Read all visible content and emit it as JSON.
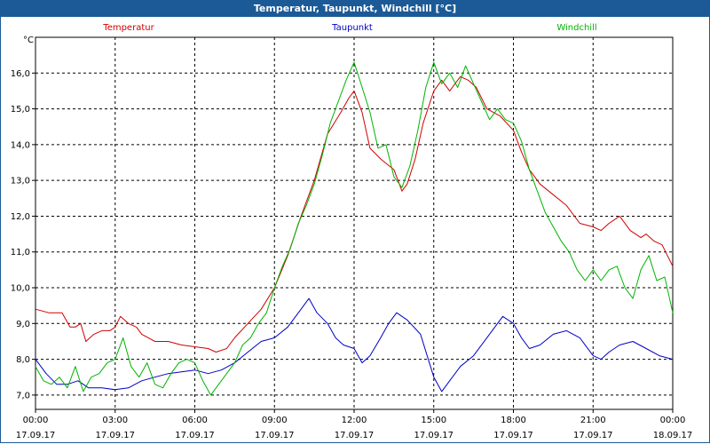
{
  "window": {
    "title": "Temperatur, Taupunkt, Windchill [°C]"
  },
  "chart_data": {
    "type": "line",
    "title": "Temperatur, Taupunkt, Windchill [°C]",
    "yunit": "°C",
    "ylim": [
      6.6,
      17.0
    ],
    "yticks": [
      "7,0",
      "8,0",
      "9,0",
      "10,0",
      "11,0",
      "12,0",
      "13,0",
      "14,0",
      "15,0",
      "16,0"
    ],
    "yticks_values": [
      7,
      8,
      9,
      10,
      11,
      12,
      13,
      14,
      15,
      16
    ],
    "xlim": [
      0,
      24
    ],
    "xticks": [
      {
        "h": 0,
        "time": "00:00",
        "date": "17.09.17"
      },
      {
        "h": 3,
        "time": "03:00",
        "date": "17.09.17"
      },
      {
        "h": 6,
        "time": "06:00",
        "date": "17.09.17"
      },
      {
        "h": 9,
        "time": "09:00",
        "date": "17.09.17"
      },
      {
        "h": 12,
        "time": "12:00",
        "date": "17.09.17"
      },
      {
        "h": 15,
        "time": "15:00",
        "date": "17.09.17"
      },
      {
        "h": 18,
        "time": "18:00",
        "date": "17.09.17"
      },
      {
        "h": 21,
        "time": "21:00",
        "date": "17.09.17"
      },
      {
        "h": 24,
        "time": "00:00",
        "date": "18.09.17"
      }
    ],
    "grid": true,
    "legend_position": "top",
    "series": [
      {
        "name": "Temperatur",
        "color": "#d00000",
        "points": [
          [
            0,
            9.4
          ],
          [
            0.5,
            9.3
          ],
          [
            1,
            9.3
          ],
          [
            1.3,
            8.9
          ],
          [
            1.5,
            8.9
          ],
          [
            1.7,
            9.0
          ],
          [
            1.9,
            8.5
          ],
          [
            2.2,
            8.7
          ],
          [
            2.5,
            8.8
          ],
          [
            2.8,
            8.8
          ],
          [
            3.0,
            8.9
          ],
          [
            3.2,
            9.2
          ],
          [
            3.5,
            9.0
          ],
          [
            3.8,
            8.9
          ],
          [
            4.0,
            8.7
          ],
          [
            4.5,
            8.5
          ],
          [
            5.0,
            8.5
          ],
          [
            5.5,
            8.4
          ],
          [
            6.0,
            8.35
          ],
          [
            6.5,
            8.3
          ],
          [
            6.8,
            8.2
          ],
          [
            7.2,
            8.3
          ],
          [
            7.5,
            8.6
          ],
          [
            8.0,
            9.0
          ],
          [
            8.5,
            9.4
          ],
          [
            9.0,
            10.0
          ],
          [
            9.5,
            10.9
          ],
          [
            10.0,
            12.0
          ],
          [
            10.5,
            13.0
          ],
          [
            11.0,
            14.3
          ],
          [
            11.5,
            14.9
          ],
          [
            11.8,
            15.3
          ],
          [
            12.0,
            15.5
          ],
          [
            12.3,
            14.9
          ],
          [
            12.6,
            13.9
          ],
          [
            13.0,
            13.6
          ],
          [
            13.5,
            13.3
          ],
          [
            13.8,
            12.7
          ],
          [
            14.0,
            12.9
          ],
          [
            14.3,
            13.6
          ],
          [
            14.6,
            14.6
          ],
          [
            15.0,
            15.5
          ],
          [
            15.3,
            15.8
          ],
          [
            15.6,
            15.5
          ],
          [
            16.0,
            15.9
          ],
          [
            16.3,
            15.8
          ],
          [
            16.6,
            15.6
          ],
          [
            17.0,
            15.0
          ],
          [
            17.5,
            14.8
          ],
          [
            18.0,
            14.4
          ],
          [
            18.3,
            13.8
          ],
          [
            18.6,
            13.3
          ],
          [
            19.0,
            12.9
          ],
          [
            19.5,
            12.6
          ],
          [
            20.0,
            12.3
          ],
          [
            20.5,
            11.8
          ],
          [
            21.0,
            11.7
          ],
          [
            21.3,
            11.6
          ],
          [
            21.6,
            11.8
          ],
          [
            22.0,
            12.0
          ],
          [
            22.4,
            11.6
          ],
          [
            22.8,
            11.4
          ],
          [
            23.0,
            11.5
          ],
          [
            23.3,
            11.3
          ],
          [
            23.6,
            11.2
          ],
          [
            24.0,
            10.6
          ]
        ]
      },
      {
        "name": "Taupunkt",
        "color": "#0000c8",
        "points": [
          [
            0,
            8.0
          ],
          [
            0.4,
            7.6
          ],
          [
            0.8,
            7.3
          ],
          [
            1.2,
            7.3
          ],
          [
            1.6,
            7.4
          ],
          [
            2.0,
            7.2
          ],
          [
            2.5,
            7.2
          ],
          [
            3.0,
            7.15
          ],
          [
            3.5,
            7.2
          ],
          [
            4.0,
            7.4
          ],
          [
            4.5,
            7.5
          ],
          [
            5.0,
            7.6
          ],
          [
            5.5,
            7.65
          ],
          [
            6.0,
            7.7
          ],
          [
            6.5,
            7.6
          ],
          [
            7.0,
            7.7
          ],
          [
            7.5,
            7.9
          ],
          [
            8.0,
            8.2
          ],
          [
            8.5,
            8.5
          ],
          [
            9.0,
            8.6
          ],
          [
            9.5,
            8.9
          ],
          [
            10.0,
            9.4
          ],
          [
            10.3,
            9.7
          ],
          [
            10.6,
            9.3
          ],
          [
            11.0,
            9.0
          ],
          [
            11.3,
            8.6
          ],
          [
            11.6,
            8.4
          ],
          [
            12.0,
            8.3
          ],
          [
            12.3,
            7.9
          ],
          [
            12.6,
            8.1
          ],
          [
            13.0,
            8.6
          ],
          [
            13.3,
            9.0
          ],
          [
            13.6,
            9.3
          ],
          [
            14.0,
            9.1
          ],
          [
            14.5,
            8.7
          ],
          [
            15.0,
            7.5
          ],
          [
            15.3,
            7.1
          ],
          [
            15.6,
            7.4
          ],
          [
            16.0,
            7.8
          ],
          [
            16.5,
            8.1
          ],
          [
            17.0,
            8.6
          ],
          [
            17.3,
            8.9
          ],
          [
            17.6,
            9.2
          ],
          [
            18.0,
            9.0
          ],
          [
            18.3,
            8.6
          ],
          [
            18.6,
            8.3
          ],
          [
            19.0,
            8.4
          ],
          [
            19.5,
            8.7
          ],
          [
            20.0,
            8.8
          ],
          [
            20.5,
            8.6
          ],
          [
            21.0,
            8.1
          ],
          [
            21.3,
            8.0
          ],
          [
            21.6,
            8.2
          ],
          [
            22.0,
            8.4
          ],
          [
            22.5,
            8.5
          ],
          [
            23.0,
            8.3
          ],
          [
            23.5,
            8.1
          ],
          [
            24.0,
            8.0
          ]
        ]
      },
      {
        "name": "Windchill",
        "color": "#00b400",
        "points": [
          [
            0,
            7.8
          ],
          [
            0.3,
            7.4
          ],
          [
            0.6,
            7.3
          ],
          [
            0.9,
            7.5
          ],
          [
            1.2,
            7.2
          ],
          [
            1.5,
            7.8
          ],
          [
            1.8,
            7.1
          ],
          [
            2.1,
            7.5
          ],
          [
            2.4,
            7.6
          ],
          [
            2.7,
            7.9
          ],
          [
            3.0,
            8.0
          ],
          [
            3.3,
            8.6
          ],
          [
            3.6,
            7.8
          ],
          [
            3.9,
            7.5
          ],
          [
            4.2,
            7.9
          ],
          [
            4.5,
            7.3
          ],
          [
            4.8,
            7.2
          ],
          [
            5.1,
            7.6
          ],
          [
            5.4,
            7.9
          ],
          [
            5.7,
            8.0
          ],
          [
            6.0,
            7.9
          ],
          [
            6.3,
            7.4
          ],
          [
            6.6,
            7.0
          ],
          [
            6.9,
            7.3
          ],
          [
            7.2,
            7.6
          ],
          [
            7.5,
            7.9
          ],
          [
            7.8,
            8.4
          ],
          [
            8.1,
            8.6
          ],
          [
            8.4,
            9.0
          ],
          [
            8.7,
            9.3
          ],
          [
            9.0,
            10.0
          ],
          [
            9.3,
            10.6
          ],
          [
            9.6,
            11.1
          ],
          [
            9.9,
            11.8
          ],
          [
            10.2,
            12.3
          ],
          [
            10.5,
            12.9
          ],
          [
            10.8,
            13.7
          ],
          [
            11.1,
            14.6
          ],
          [
            11.4,
            15.2
          ],
          [
            11.7,
            15.8
          ],
          [
            12.0,
            16.3
          ],
          [
            12.3,
            15.6
          ],
          [
            12.6,
            14.9
          ],
          [
            12.9,
            13.9
          ],
          [
            13.2,
            14.0
          ],
          [
            13.5,
            13.1
          ],
          [
            13.8,
            12.8
          ],
          [
            14.1,
            13.4
          ],
          [
            14.4,
            14.4
          ],
          [
            14.7,
            15.6
          ],
          [
            15.0,
            16.3
          ],
          [
            15.3,
            15.7
          ],
          [
            15.6,
            16.0
          ],
          [
            15.9,
            15.6
          ],
          [
            16.2,
            16.2
          ],
          [
            16.5,
            15.7
          ],
          [
            16.8,
            15.2
          ],
          [
            17.1,
            14.7
          ],
          [
            17.4,
            15.0
          ],
          [
            17.7,
            14.7
          ],
          [
            18.0,
            14.6
          ],
          [
            18.3,
            14.1
          ],
          [
            18.6,
            13.3
          ],
          [
            18.9,
            12.7
          ],
          [
            19.2,
            12.1
          ],
          [
            19.5,
            11.7
          ],
          [
            19.8,
            11.3
          ],
          [
            20.1,
            11.0
          ],
          [
            20.4,
            10.5
          ],
          [
            20.7,
            10.2
          ],
          [
            21.0,
            10.5
          ],
          [
            21.3,
            10.2
          ],
          [
            21.6,
            10.5
          ],
          [
            21.9,
            10.6
          ],
          [
            22.2,
            10.0
          ],
          [
            22.5,
            9.7
          ],
          [
            22.8,
            10.5
          ],
          [
            23.1,
            10.9
          ],
          [
            23.4,
            10.2
          ],
          [
            23.7,
            10.3
          ],
          [
            24.0,
            9.3
          ]
        ]
      }
    ]
  }
}
